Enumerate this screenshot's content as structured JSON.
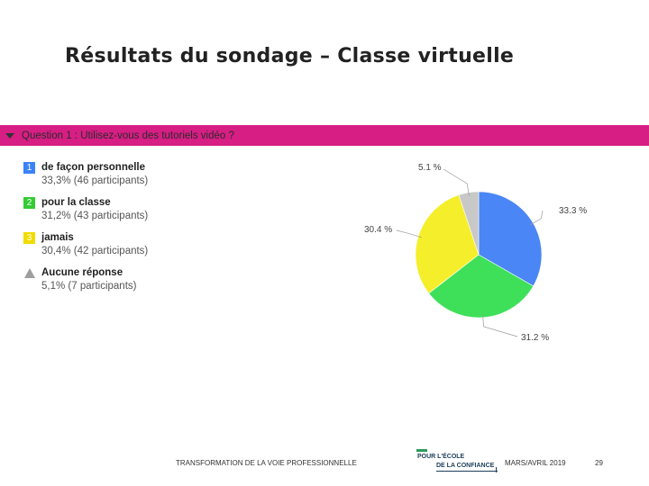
{
  "title": "Résultats du sondage – Classe virtuelle",
  "question": {
    "text": "Question 1 : Utilisez-vous des tutoriels vidéo ?"
  },
  "legend": [
    {
      "badge": "1",
      "label": "de façon personnelle",
      "detail": "33,3% (46 participants)",
      "color": "#3b82f6"
    },
    {
      "badge": "2",
      "label": "pour la classe",
      "detail": "31,2% (43 participants)",
      "color": "#33cc33"
    },
    {
      "badge": "3",
      "label": "jamais",
      "detail": "30,4% (42 participants)",
      "color": "#f2dc00"
    },
    {
      "badge": "",
      "label": "Aucune réponse",
      "detail": "5,1% (7 participants)",
      "color": "#9e9e9e"
    }
  ],
  "chart_data": {
    "type": "pie",
    "slices": [
      {
        "label": "de façon personnelle",
        "value": 33.3,
        "display": "33.3 %",
        "color": "#4a86f5"
      },
      {
        "label": "pour la classe",
        "value": 31.2,
        "display": "31.2 %",
        "color": "#3ee05a"
      },
      {
        "label": "jamais",
        "value": 30.4,
        "display": "30.4 %",
        "color": "#f5ee2a"
      },
      {
        "label": "Aucune réponse",
        "value": 5.1,
        "display": "5.1 %",
        "color": "#c8c8c8"
      }
    ]
  },
  "footer": {
    "left": "TRANSFORMATION DE LA VOIE PROFESSIONNELLE",
    "logo_line1": "POUR L'ÉCOLE",
    "logo_line2": "DE LA CONFIANCE",
    "date": "MARS/AVRIL 2019",
    "page": "29"
  }
}
